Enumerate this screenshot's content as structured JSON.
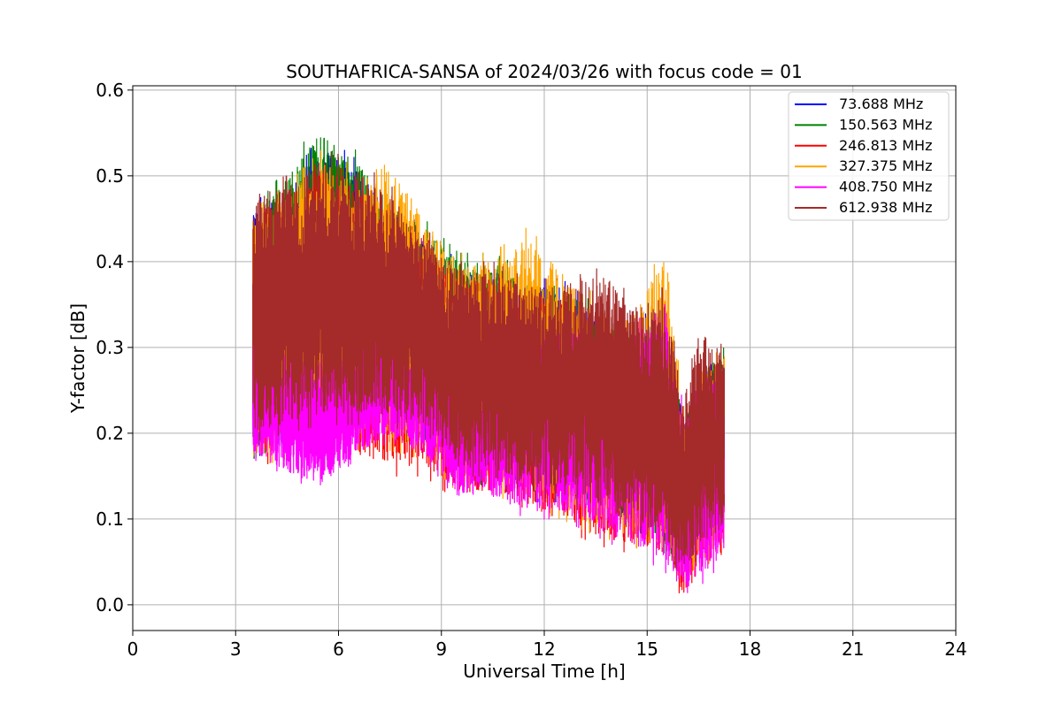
{
  "chart_data": {
    "type": "line",
    "title": "SOUTHAFRICA-SANSA of 2024/03/26 with focus code = 01",
    "xlabel": "Universal Time [h]",
    "ylabel": "Y-factor [dB]",
    "xlim": [
      0,
      24
    ],
    "ylim": [
      -0.03,
      0.605
    ],
    "xticks": [
      0,
      3,
      6,
      9,
      12,
      15,
      18,
      21,
      24
    ],
    "xtick_labels": [
      "0",
      "3",
      "6",
      "9",
      "12",
      "15",
      "18",
      "21",
      "24"
    ],
    "yticks": [
      0.0,
      0.1,
      0.2,
      0.3,
      0.4,
      0.5,
      0.6
    ],
    "ytick_labels": [
      "0.0",
      "0.1",
      "0.2",
      "0.3",
      "0.4",
      "0.5",
      "0.6"
    ],
    "grid": true,
    "legend_position": "top-right",
    "time_range": [
      3.5,
      17.25
    ],
    "series": [
      {
        "name": " 73.688 MHz",
        "color": "#0000ff",
        "envelope": {
          "x": [
            3.5,
            4.5,
            5.5,
            6.5,
            7.5,
            8.5,
            9.5,
            10.5,
            11.5,
            12.5,
            13.5,
            14.5,
            15.5,
            16.1,
            16.5,
            17.25
          ],
          "high": [
            0.47,
            0.49,
            0.55,
            0.52,
            0.47,
            0.44,
            0.4,
            0.4,
            0.38,
            0.38,
            0.35,
            0.33,
            0.35,
            0.22,
            0.28,
            0.3
          ],
          "low": [
            0.17,
            0.19,
            0.21,
            0.2,
            0.2,
            0.18,
            0.14,
            0.14,
            0.12,
            0.12,
            0.1,
            0.09,
            0.07,
            0.02,
            0.06,
            0.08
          ]
        }
      },
      {
        "name": "150.563 MHz",
        "color": "#008000",
        "envelope": {
          "x": [
            3.5,
            4.5,
            5.5,
            6.5,
            7.5,
            8.5,
            9.5,
            10.5,
            11.5,
            12.5,
            13.5,
            14.5,
            15.5,
            16.1,
            16.5,
            17.25
          ],
          "high": [
            0.46,
            0.51,
            0.57,
            0.53,
            0.48,
            0.45,
            0.41,
            0.41,
            0.39,
            0.38,
            0.35,
            0.33,
            0.34,
            0.22,
            0.28,
            0.3
          ],
          "low": [
            0.17,
            0.19,
            0.21,
            0.2,
            0.2,
            0.18,
            0.14,
            0.14,
            0.12,
            0.12,
            0.1,
            0.09,
            0.06,
            0.02,
            0.06,
            0.08
          ]
        }
      },
      {
        "name": "246.813 MHz",
        "color": "#ff0000",
        "envelope": {
          "x": [
            3.5,
            4.5,
            5.5,
            6.5,
            7.5,
            8.5,
            9.5,
            10.5,
            11.5,
            12.5,
            13.5,
            14.5,
            15.5,
            16.1,
            16.5,
            17.25
          ],
          "high": [
            0.45,
            0.48,
            0.52,
            0.5,
            0.46,
            0.43,
            0.39,
            0.39,
            0.37,
            0.37,
            0.34,
            0.32,
            0.33,
            0.21,
            0.27,
            0.29
          ],
          "low": [
            0.16,
            0.17,
            0.18,
            0.16,
            0.15,
            0.15,
            0.12,
            0.12,
            0.1,
            0.09,
            0.07,
            0.06,
            0.05,
            0.0,
            0.03,
            0.05
          ]
        }
      },
      {
        "name": "327.375 MHz",
        "color": "#ffa500",
        "envelope": {
          "x": [
            3.5,
            4.5,
            5.5,
            6.5,
            7.5,
            8.5,
            9.5,
            10.5,
            11.5,
            12.5,
            13.5,
            14.5,
            15.5,
            16.1,
            16.5,
            17.25
          ],
          "high": [
            0.46,
            0.49,
            0.53,
            0.51,
            0.53,
            0.46,
            0.41,
            0.41,
            0.44,
            0.4,
            0.36,
            0.34,
            0.42,
            0.22,
            0.28,
            0.3
          ],
          "low": [
            0.16,
            0.17,
            0.19,
            0.18,
            0.18,
            0.17,
            0.13,
            0.13,
            0.11,
            0.1,
            0.08,
            0.07,
            0.05,
            0.01,
            0.04,
            0.06
          ]
        }
      },
      {
        "name": "408.750 MHz",
        "color": "#ff00ff",
        "envelope": {
          "x": [
            3.5,
            4.5,
            5.5,
            6.5,
            7.5,
            8.5,
            9.5,
            10.5,
            11.5,
            12.5,
            13.5,
            14.5,
            15.5,
            16.1,
            16.5,
            17.25
          ],
          "high": [
            0.32,
            0.3,
            0.3,
            0.32,
            0.32,
            0.3,
            0.28,
            0.27,
            0.33,
            0.33,
            0.33,
            0.32,
            0.37,
            0.22,
            0.27,
            0.28
          ],
          "low": [
            0.17,
            0.15,
            0.13,
            0.17,
            0.19,
            0.17,
            0.12,
            0.12,
            0.1,
            0.1,
            0.08,
            0.06,
            0.04,
            0.0,
            0.02,
            0.05
          ]
        }
      },
      {
        "name": "612.938 MHz",
        "color": "#a52a2a",
        "envelope": {
          "x": [
            3.5,
            4.5,
            5.5,
            6.5,
            7.5,
            8.5,
            9.5,
            10.5,
            11.5,
            12.5,
            13.5,
            14.5,
            15.5,
            16.1,
            16.5,
            17.25
          ],
          "high": [
            0.49,
            0.5,
            0.53,
            0.52,
            0.49,
            0.44,
            0.4,
            0.4,
            0.38,
            0.38,
            0.41,
            0.36,
            0.37,
            0.24,
            0.33,
            0.3
          ],
          "low": [
            0.19,
            0.2,
            0.21,
            0.21,
            0.21,
            0.19,
            0.15,
            0.15,
            0.13,
            0.12,
            0.1,
            0.09,
            0.07,
            0.02,
            0.06,
            0.08
          ]
        }
      }
    ]
  }
}
